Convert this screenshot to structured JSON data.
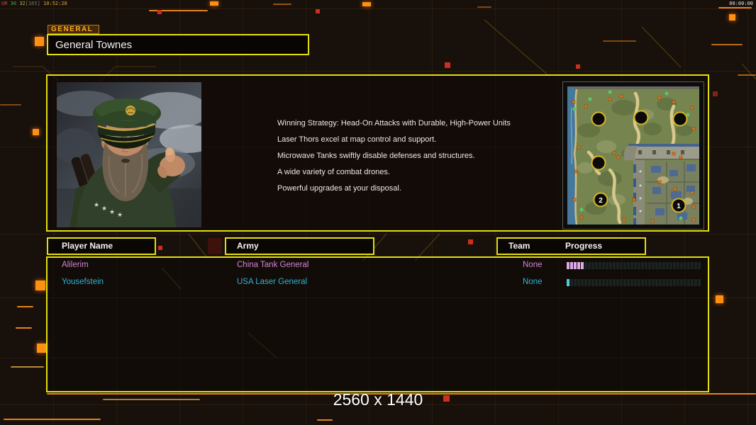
{
  "hud": {
    "fps_parts": [
      {
        "text": "UR ",
        "color": "#d04848"
      },
      {
        "text": "30 ",
        "color": "#48b048"
      },
      {
        "text": "32",
        "color": "#b8b832"
      },
      {
        "text": "[165] ",
        "color": "#78786e"
      },
      {
        "text": "10:52:28",
        "color": "#d8a838"
      }
    ],
    "timer": "00:00:00"
  },
  "header": {
    "tab_label": "GENERAL",
    "general_name": "General Townes"
  },
  "strategy": {
    "lines": [
      "Winning Strategy: Head-On Attacks with Durable, High-Power Units",
      "Laser Thors excel at map control and support.",
      "Microwave Tanks swiftly disable defenses and structures.",
      "A wide variety of combat drones.",
      "Powerful upgrades at your disposal."
    ]
  },
  "map_preview": {
    "start_positions": [
      {
        "label": "2"
      },
      {
        "label": "1"
      }
    ]
  },
  "table": {
    "headers": {
      "player": "Player Name",
      "army": "Army",
      "team": "Team",
      "progress": "Progress"
    },
    "progress_total_segments": 38,
    "rows": [
      {
        "player": "Alilerim",
        "army": "China Tank General",
        "team": "None",
        "progress_percent": 12,
        "text_color": "#d383d3",
        "bar_color": "#dcaae4"
      },
      {
        "player": "Yousefstein",
        "army": "USA Laser General",
        "team": "None",
        "progress_percent": 3,
        "text_color": "#2ab4d6",
        "bar_color": "#4ecddd"
      }
    ]
  },
  "footer": {
    "resolution_label": "2560 x 1440"
  },
  "colors": {
    "accent_yellow": "#e3df0e",
    "accent_orange": "#ff9012",
    "alert_red": "#cf2d1e",
    "background": "#18100b"
  }
}
